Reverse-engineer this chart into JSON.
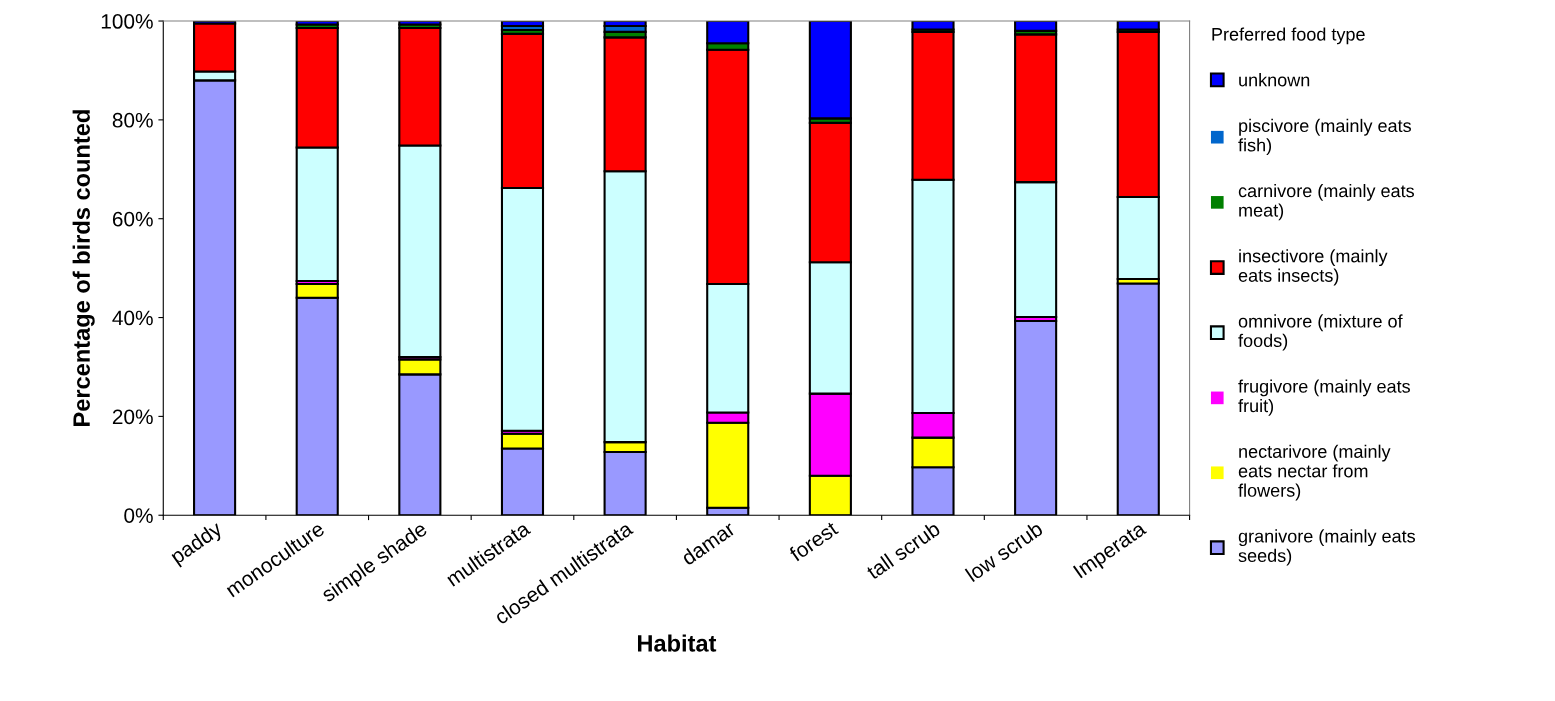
{
  "chart_data": {
    "type": "bar",
    "stacked": true,
    "xlabel": "Habitat",
    "ylabel": "Percentage of birds counted",
    "legend_title": "Preferred food type",
    "legend": "right",
    "grid": false,
    "categories": [
      "paddy",
      "monoculture",
      "simple shade",
      "multistrata",
      "closed multistrata",
      "damar",
      "forest",
      "tall scrub",
      "low scrub",
      "Imperata"
    ],
    "ylim": [
      0,
      100
    ],
    "yticks": [
      {
        "value": 0,
        "label": "0%"
      },
      {
        "value": 20,
        "label": "20%"
      },
      {
        "value": 40,
        "label": "40%"
      },
      {
        "value": 60,
        "label": "60%"
      },
      {
        "value": 80,
        "label": "80%"
      },
      {
        "value": 100,
        "label": "100%"
      }
    ],
    "series": [
      {
        "name": "granivore (mainly eats\nseeds)",
        "color": "#9999ff",
        "values": [
          88,
          44,
          28.5,
          13.5,
          12.8,
          1.5,
          0,
          9.7,
          39.3,
          46.9
        ]
      },
      {
        "name": "nectarivore (mainly\neats nectar from\nflowers)",
        "color": "#ffff00",
        "values": [
          0,
          2.8,
          3,
          3,
          2,
          17.2,
          8,
          6,
          0,
          0.9
        ]
      },
      {
        "name": "frugivore (mainly eats\nfruit)",
        "color": "#ff00ff",
        "values": [
          0,
          0.6,
          0.5,
          0.6,
          0,
          2.1,
          16.6,
          5,
          0.8,
          0
        ]
      },
      {
        "name": "omnivore (mixture of\nfoods)",
        "color": "#ccffff",
        "values": [
          1.8,
          27,
          42.8,
          49.1,
          54.8,
          26,
          26.6,
          47.2,
          27.3,
          16.6
        ]
      },
      {
        "name": "insectivore (mainly\neats insects)",
        "color": "#ff0000",
        "values": [
          9.7,
          24.2,
          23.8,
          31.2,
          27.1,
          47.4,
          28.2,
          29.9,
          29.9,
          33.4
        ]
      },
      {
        "name": "carnivore (mainly eats\nmeat)",
        "color": "#008000",
        "values": [
          0,
          0.7,
          0.7,
          0.8,
          1.1,
          1.3,
          0.9,
          0.5,
          0.7,
          0.5
        ]
      },
      {
        "name": "piscivore (mainly eats\nfish)",
        "color": "#0066cc",
        "values": [
          0,
          0,
          0,
          0.8,
          1.2,
          0,
          0,
          0,
          0,
          0
        ]
      },
      {
        "name": "unknown",
        "color": "#0000ff",
        "values": [
          0.5,
          0.7,
          0.7,
          1,
          1,
          4.5,
          19.7,
          1.7,
          2,
          1.7
        ]
      }
    ]
  }
}
